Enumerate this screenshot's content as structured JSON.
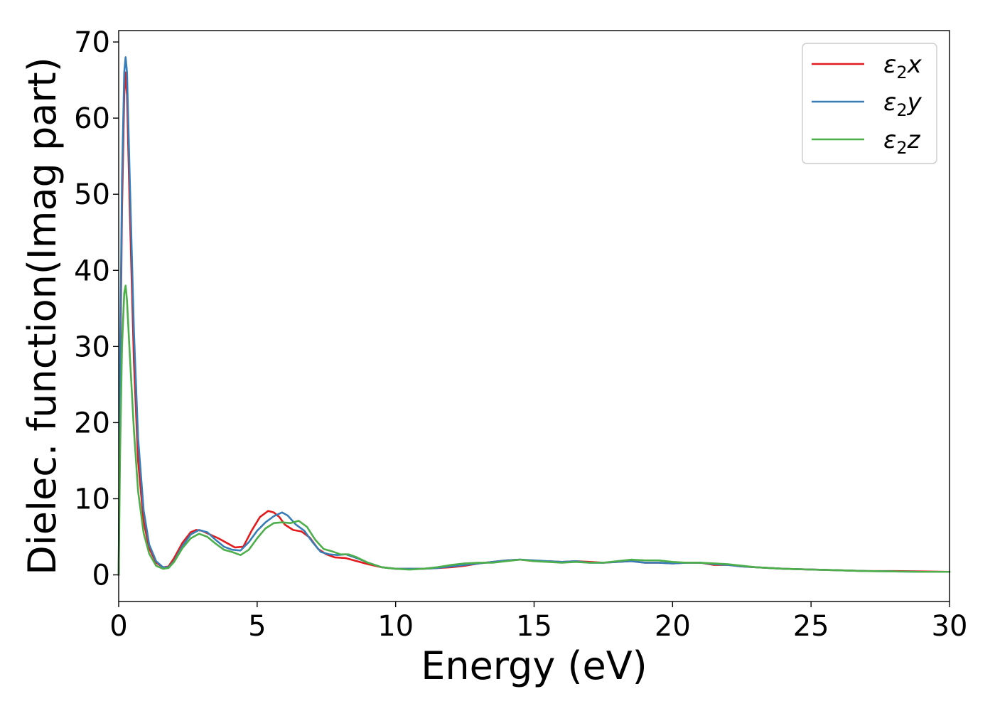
{
  "chart_data": {
    "type": "line",
    "xlabel": "Energy (eV)",
    "ylabel": "Dielec. function(Imag part)",
    "xlim": [
      0,
      30
    ],
    "ylim": [
      -3.5,
      71.5
    ],
    "xticks": [
      0,
      5,
      10,
      15,
      20,
      25,
      30
    ],
    "yticks": [
      0,
      10,
      20,
      30,
      40,
      50,
      60,
      70
    ],
    "grid": false,
    "legend_position": "top-right",
    "series": [
      {
        "name": "ε₂x",
        "legend_main": "ε",
        "legend_sub": "2",
        "legend_suffix": "x",
        "color": "#e41a1c",
        "points": [
          [
            0,
            0
          ],
          [
            0.05,
            25
          ],
          [
            0.12,
            48
          ],
          [
            0.2,
            63
          ],
          [
            0.25,
            66
          ],
          [
            0.3,
            63
          ],
          [
            0.4,
            48
          ],
          [
            0.55,
            28
          ],
          [
            0.7,
            15
          ],
          [
            0.9,
            7
          ],
          [
            1.1,
            3.5
          ],
          [
            1.35,
            1.6
          ],
          [
            1.6,
            1.0
          ],
          [
            1.8,
            1.1
          ],
          [
            2.0,
            2.2
          ],
          [
            2.3,
            4.2
          ],
          [
            2.6,
            5.6
          ],
          [
            2.8,
            5.9
          ],
          [
            3.0,
            5.8
          ],
          [
            3.3,
            5.3
          ],
          [
            3.6,
            4.8
          ],
          [
            3.9,
            4.2
          ],
          [
            4.2,
            3.6
          ],
          [
            4.5,
            3.7
          ],
          [
            4.8,
            5.8
          ],
          [
            5.1,
            7.6
          ],
          [
            5.4,
            8.4
          ],
          [
            5.6,
            8.2
          ],
          [
            5.8,
            7.6
          ],
          [
            6.0,
            6.6
          ],
          [
            6.3,
            5.9
          ],
          [
            6.6,
            5.7
          ],
          [
            6.9,
            4.9
          ],
          [
            7.2,
            3.4
          ],
          [
            7.5,
            2.7
          ],
          [
            7.8,
            2.3
          ],
          [
            8.2,
            2.2
          ],
          [
            8.6,
            1.8
          ],
          [
            9.0,
            1.4
          ],
          [
            9.5,
            1.0
          ],
          [
            10,
            0.8
          ],
          [
            10.5,
            0.8
          ],
          [
            11,
            0.8
          ],
          [
            11.5,
            0.9
          ],
          [
            12,
            1.0
          ],
          [
            12.5,
            1.2
          ],
          [
            13,
            1.5
          ],
          [
            13.5,
            1.7
          ],
          [
            14,
            1.9
          ],
          [
            14.5,
            2.0
          ],
          [
            15,
            1.8
          ],
          [
            15.5,
            1.8
          ],
          [
            16,
            1.7
          ],
          [
            16.5,
            1.8
          ],
          [
            17,
            1.7
          ],
          [
            17.5,
            1.6
          ],
          [
            18,
            1.7
          ],
          [
            18.5,
            1.8
          ],
          [
            19,
            1.6
          ],
          [
            19.5,
            1.6
          ],
          [
            20,
            1.5
          ],
          [
            20.5,
            1.6
          ],
          [
            21,
            1.6
          ],
          [
            21.5,
            1.3
          ],
          [
            22,
            1.3
          ],
          [
            22.5,
            1.1
          ],
          [
            23,
            1.0
          ],
          [
            24,
            0.8
          ],
          [
            25,
            0.7
          ],
          [
            26,
            0.6
          ],
          [
            27,
            0.5
          ],
          [
            28,
            0.5
          ],
          [
            29,
            0.45
          ],
          [
            30,
            0.4
          ]
        ]
      },
      {
        "name": "ε₂y",
        "legend_main": "ε",
        "legend_sub": "2",
        "legend_suffix": "y",
        "color": "#377eb8",
        "points": [
          [
            0,
            0
          ],
          [
            0.05,
            28
          ],
          [
            0.12,
            52
          ],
          [
            0.2,
            66
          ],
          [
            0.25,
            68
          ],
          [
            0.3,
            66
          ],
          [
            0.4,
            52
          ],
          [
            0.55,
            32
          ],
          [
            0.7,
            18
          ],
          [
            0.9,
            8.5
          ],
          [
            1.1,
            4
          ],
          [
            1.35,
            1.8
          ],
          [
            1.6,
            1.0
          ],
          [
            1.8,
            1.0
          ],
          [
            2.0,
            1.8
          ],
          [
            2.3,
            3.8
          ],
          [
            2.6,
            5.3
          ],
          [
            2.9,
            5.9
          ],
          [
            3.2,
            5.6
          ],
          [
            3.5,
            4.6
          ],
          [
            3.8,
            3.7
          ],
          [
            4.1,
            3.3
          ],
          [
            4.4,
            3.2
          ],
          [
            4.7,
            4.3
          ],
          [
            5.0,
            5.8
          ],
          [
            5.3,
            6.9
          ],
          [
            5.6,
            7.7
          ],
          [
            5.9,
            8.2
          ],
          [
            6.1,
            7.8
          ],
          [
            6.4,
            6.6
          ],
          [
            6.7,
            5.8
          ],
          [
            7.0,
            4.3
          ],
          [
            7.3,
            3.0
          ],
          [
            7.6,
            2.7
          ],
          [
            7.9,
            2.6
          ],
          [
            8.2,
            2.7
          ],
          [
            8.6,
            2.2
          ],
          [
            9.0,
            1.6
          ],
          [
            9.5,
            1.0
          ],
          [
            10,
            0.8
          ],
          [
            10.5,
            0.8
          ],
          [
            11,
            0.8
          ],
          [
            11.5,
            0.9
          ],
          [
            12,
            1.1
          ],
          [
            12.5,
            1.3
          ],
          [
            13,
            1.5
          ],
          [
            13.5,
            1.7
          ],
          [
            14,
            1.9
          ],
          [
            14.5,
            2.0
          ],
          [
            15,
            1.9
          ],
          [
            15.5,
            1.8
          ],
          [
            16,
            1.7
          ],
          [
            16.5,
            1.8
          ],
          [
            17,
            1.6
          ],
          [
            17.5,
            1.6
          ],
          [
            18,
            1.7
          ],
          [
            18.5,
            1.8
          ],
          [
            19,
            1.6
          ],
          [
            19.5,
            1.6
          ],
          [
            20,
            1.5
          ],
          [
            20.5,
            1.6
          ],
          [
            21,
            1.6
          ],
          [
            21.5,
            1.4
          ],
          [
            22,
            1.3
          ],
          [
            22.5,
            1.1
          ],
          [
            23,
            1.0
          ],
          [
            24,
            0.8
          ],
          [
            25,
            0.7
          ],
          [
            26,
            0.6
          ],
          [
            27,
            0.5
          ],
          [
            28,
            0.45
          ],
          [
            29,
            0.4
          ],
          [
            30,
            0.4
          ]
        ]
      },
      {
        "name": "ε₂z",
        "legend_main": "ε",
        "legend_sub": "2",
        "legend_suffix": "z",
        "color": "#4daf4a",
        "points": [
          [
            0,
            0
          ],
          [
            0.05,
            16
          ],
          [
            0.12,
            30
          ],
          [
            0.2,
            37
          ],
          [
            0.25,
            38
          ],
          [
            0.3,
            36
          ],
          [
            0.4,
            29
          ],
          [
            0.55,
            19
          ],
          [
            0.7,
            11
          ],
          [
            0.9,
            5.5
          ],
          [
            1.1,
            2.8
          ],
          [
            1.35,
            1.2
          ],
          [
            1.6,
            0.8
          ],
          [
            1.8,
            0.9
          ],
          [
            2.0,
            1.7
          ],
          [
            2.3,
            3.5
          ],
          [
            2.6,
            4.8
          ],
          [
            2.9,
            5.4
          ],
          [
            3.2,
            5.0
          ],
          [
            3.5,
            4.1
          ],
          [
            3.8,
            3.3
          ],
          [
            4.1,
            3.0
          ],
          [
            4.4,
            2.6
          ],
          [
            4.7,
            3.3
          ],
          [
            5.0,
            4.8
          ],
          [
            5.3,
            6.1
          ],
          [
            5.6,
            6.8
          ],
          [
            5.9,
            6.9
          ],
          [
            6.2,
            6.8
          ],
          [
            6.5,
            7.1
          ],
          [
            6.8,
            6.3
          ],
          [
            7.1,
            4.6
          ],
          [
            7.4,
            3.4
          ],
          [
            7.7,
            3.1
          ],
          [
            8.0,
            2.7
          ],
          [
            8.3,
            2.7
          ],
          [
            8.6,
            2.3
          ],
          [
            9.0,
            1.6
          ],
          [
            9.5,
            1.0
          ],
          [
            10,
            0.8
          ],
          [
            10.5,
            0.7
          ],
          [
            11,
            0.8
          ],
          [
            11.5,
            1.0
          ],
          [
            12,
            1.3
          ],
          [
            12.5,
            1.5
          ],
          [
            13,
            1.6
          ],
          [
            13.5,
            1.6
          ],
          [
            14,
            1.8
          ],
          [
            14.5,
            2.0
          ],
          [
            15,
            1.8
          ],
          [
            15.5,
            1.7
          ],
          [
            16,
            1.6
          ],
          [
            16.5,
            1.7
          ],
          [
            17,
            1.6
          ],
          [
            17.5,
            1.6
          ],
          [
            18,
            1.8
          ],
          [
            18.5,
            2.0
          ],
          [
            19,
            1.9
          ],
          [
            19.5,
            1.9
          ],
          [
            20,
            1.7
          ],
          [
            20.5,
            1.6
          ],
          [
            21,
            1.6
          ],
          [
            21.5,
            1.5
          ],
          [
            22,
            1.4
          ],
          [
            22.5,
            1.2
          ],
          [
            23,
            1.0
          ],
          [
            24,
            0.8
          ],
          [
            25,
            0.7
          ],
          [
            26,
            0.6
          ],
          [
            27,
            0.5
          ],
          [
            28,
            0.45
          ],
          [
            29,
            0.4
          ],
          [
            30,
            0.4
          ]
        ]
      }
    ]
  }
}
